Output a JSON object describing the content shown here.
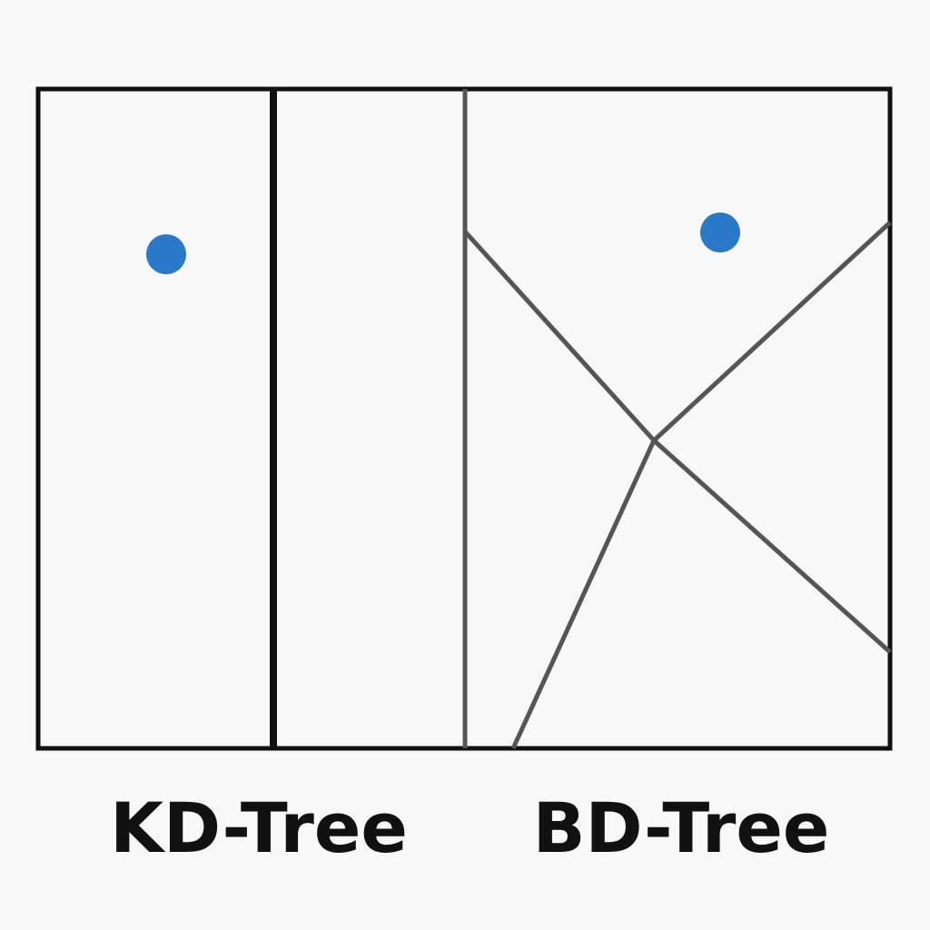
{
  "labels": {
    "kd_tree": "KD-Tree",
    "bd_tree": "BD-Tree"
  },
  "colors": {
    "background": "#f8f8f8",
    "frame": "#111111",
    "split_line": "#555555",
    "point": "#2a78c8",
    "text": "#111111"
  }
}
